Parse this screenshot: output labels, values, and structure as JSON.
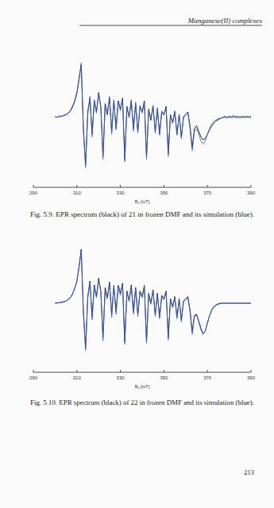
{
  "header": "Manganese(II) complexes",
  "page_number": 213,
  "chart_data": [
    {
      "type": "line",
      "caption": "Fig. 5.9. EPR spectrum (black) of 21 in frozen DMF and its simulation (blue).",
      "xlabel": "B₀ [mT]",
      "xlim": [
        290,
        390
      ],
      "xticks": [
        290,
        310,
        330,
        350,
        370,
        390
      ],
      "ylim": [
        -1,
        1
      ],
      "tick_labels": "x",
      "grid": false,
      "x": [
        300,
        301,
        302,
        303,
        304,
        305,
        306,
        307,
        308,
        309,
        310,
        311,
        312,
        313,
        314,
        315,
        316,
        317,
        318,
        319,
        320,
        321,
        322,
        323,
        324,
        325,
        326,
        327,
        328,
        329,
        330,
        331,
        332,
        333,
        334,
        335,
        336,
        337,
        338,
        339,
        340,
        341,
        342,
        343,
        344,
        345,
        346,
        347,
        348,
        349,
        350,
        351,
        352,
        353,
        354,
        355,
        356,
        357,
        358,
        359,
        360,
        361,
        362,
        363,
        364,
        365,
        366,
        367,
        368,
        369,
        370,
        371,
        372,
        373,
        374,
        375,
        376,
        377,
        378,
        379,
        380,
        381,
        382,
        383,
        384,
        385,
        386,
        387,
        388,
        389,
        390
      ],
      "series": [
        {
          "color": "#111111",
          "values": [
            0.02,
            0.0,
            0.03,
            0.02,
            0.04,
            0.05,
            0.08,
            0.12,
            0.2,
            0.3,
            0.45,
            0.7,
            0.95,
            -0.2,
            -0.85,
            0.1,
            0.35,
            -0.3,
            0.3,
            0.1,
            0.45,
            0.2,
            -0.7,
            0.25,
            0.05,
            0.35,
            -0.25,
            0.3,
            -0.2,
            0.3,
            0.15,
            0.35,
            -0.75,
            0.2,
            0.0,
            0.3,
            -0.2,
            0.25,
            -0.25,
            0.2,
            0.1,
            0.3,
            -0.7,
            0.15,
            -0.05,
            0.2,
            -0.25,
            0.15,
            -0.3,
            0.1,
            0.05,
            0.2,
            -0.65,
            0.05,
            -0.1,
            0.1,
            -0.3,
            0.05,
            -0.35,
            0.0,
            0.05,
            0.1,
            -0.15,
            -0.55,
            -0.2,
            -0.15,
            -0.25,
            -0.35,
            -0.4,
            -0.38,
            -0.3,
            -0.22,
            -0.15,
            -0.1,
            -0.06,
            -0.04,
            -0.02,
            0.0,
            0.02,
            0.0,
            0.02,
            0.01,
            0.03,
            0.01,
            0.02,
            0.0,
            0.02,
            0.01,
            0.02,
            0.01,
            0.02
          ]
        },
        {
          "color": "#3a5fcd",
          "values": [
            0.0,
            0.01,
            0.01,
            0.02,
            0.03,
            0.05,
            0.07,
            0.11,
            0.18,
            0.28,
            0.42,
            0.68,
            0.98,
            -0.25,
            -0.9,
            0.05,
            0.38,
            -0.35,
            0.32,
            0.08,
            0.42,
            0.18,
            -0.75,
            0.2,
            0.08,
            0.38,
            -0.3,
            0.32,
            -0.22,
            0.28,
            0.12,
            0.33,
            -0.8,
            0.18,
            0.02,
            0.32,
            -0.25,
            0.28,
            -0.28,
            0.22,
            0.08,
            0.28,
            -0.75,
            0.12,
            -0.02,
            0.22,
            -0.28,
            0.18,
            -0.32,
            0.12,
            0.04,
            0.18,
            -0.7,
            0.02,
            -0.08,
            0.12,
            -0.32,
            0.06,
            -0.38,
            0.02,
            0.06,
            0.08,
            -0.2,
            -0.6,
            -0.25,
            -0.2,
            -0.3,
            -0.42,
            -0.48,
            -0.42,
            -0.3,
            -0.2,
            -0.12,
            -0.07,
            -0.04,
            -0.02,
            -0.01,
            0.0,
            0.0,
            0.0,
            0.0,
            0.0,
            0.0,
            0.0,
            0.0,
            0.0,
            0.0,
            0.0,
            0.0,
            0.0,
            0.0
          ]
        }
      ]
    },
    {
      "type": "line",
      "caption": "Fig. 5.10. EPR spectrum (black) of 22 in frozen DMF and its simulation (blue).",
      "xlabel": "B₀ [mT]",
      "xlim": [
        290,
        390
      ],
      "xticks": [
        290,
        310,
        330,
        350,
        370,
        390
      ],
      "ylim": [
        -1,
        1
      ],
      "tick_labels": "x",
      "grid": false,
      "x": [
        300,
        301,
        302,
        303,
        304,
        305,
        306,
        307,
        308,
        309,
        310,
        311,
        312,
        313,
        314,
        315,
        316,
        317,
        318,
        319,
        320,
        321,
        322,
        323,
        324,
        325,
        326,
        327,
        328,
        329,
        330,
        331,
        332,
        333,
        334,
        335,
        336,
        337,
        338,
        339,
        340,
        341,
        342,
        343,
        344,
        345,
        346,
        347,
        348,
        349,
        350,
        351,
        352,
        353,
        354,
        355,
        356,
        357,
        358,
        359,
        360,
        361,
        362,
        363,
        364,
        365,
        366,
        367,
        368,
        369,
        370,
        371,
        372,
        373,
        374,
        375,
        376,
        377,
        378,
        379,
        380,
        381,
        382,
        383,
        384,
        385,
        386,
        387,
        388,
        389,
        390
      ],
      "series": [
        {
          "color": "#111111",
          "values": [
            0.0,
            0.01,
            0.01,
            0.02,
            0.03,
            0.04,
            0.07,
            0.1,
            0.17,
            0.27,
            0.4,
            0.66,
            0.97,
            -0.15,
            -0.8,
            0.12,
            0.4,
            -0.25,
            0.33,
            0.12,
            0.45,
            0.22,
            -0.62,
            0.28,
            0.1,
            0.38,
            -0.2,
            0.32,
            -0.15,
            0.32,
            0.18,
            0.36,
            -0.7,
            0.22,
            0.05,
            0.33,
            -0.15,
            0.28,
            -0.2,
            0.22,
            0.12,
            0.32,
            -0.68,
            0.18,
            0.0,
            0.24,
            -0.2,
            0.18,
            -0.25,
            0.14,
            0.08,
            0.22,
            -0.62,
            0.08,
            -0.06,
            0.12,
            -0.25,
            0.08,
            -0.3,
            0.04,
            0.08,
            0.12,
            -0.12,
            -0.52,
            -0.22,
            -0.2,
            -0.32,
            -0.45,
            -0.55,
            -0.5,
            -0.36,
            -0.22,
            -0.12,
            -0.06,
            -0.03,
            -0.01,
            0.0,
            0.0,
            0.0,
            0.0,
            0.0,
            0.0,
            0.0,
            0.0,
            0.0,
            0.0,
            0.0,
            0.0,
            0.0,
            0.0,
            0.0
          ]
        },
        {
          "color": "#3a5fcd",
          "values": [
            0.0,
            0.0,
            0.01,
            0.01,
            0.02,
            0.04,
            0.06,
            0.1,
            0.16,
            0.26,
            0.39,
            0.64,
            0.95,
            -0.2,
            -0.85,
            0.08,
            0.38,
            -0.3,
            0.3,
            0.1,
            0.42,
            0.2,
            -0.68,
            0.24,
            0.08,
            0.35,
            -0.26,
            0.3,
            -0.2,
            0.28,
            0.14,
            0.33,
            -0.74,
            0.2,
            0.03,
            0.3,
            -0.2,
            0.26,
            -0.24,
            0.2,
            0.1,
            0.3,
            -0.72,
            0.15,
            -0.02,
            0.22,
            -0.24,
            0.16,
            -0.28,
            0.12,
            0.06,
            0.2,
            -0.66,
            0.05,
            -0.08,
            0.1,
            -0.28,
            0.06,
            -0.34,
            0.02,
            0.06,
            0.1,
            -0.16,
            -0.56,
            -0.24,
            -0.22,
            -0.34,
            -0.48,
            -0.56,
            -0.5,
            -0.35,
            -0.22,
            -0.13,
            -0.07,
            -0.04,
            -0.02,
            -0.01,
            0.0,
            0.0,
            0.0,
            0.0,
            0.0,
            0.0,
            0.0,
            0.0,
            0.0,
            0.0,
            0.0,
            0.0,
            0.0,
            0.0
          ]
        }
      ]
    }
  ]
}
